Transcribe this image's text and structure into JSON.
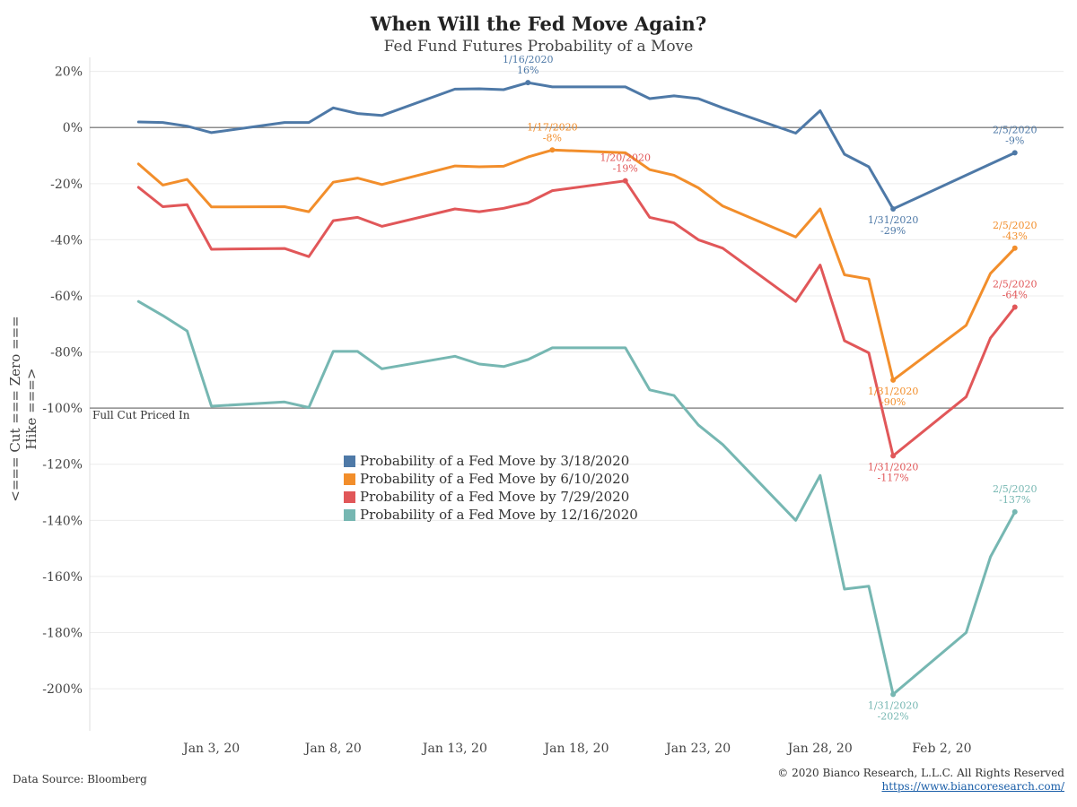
{
  "header": {
    "title": "When Will the Fed Move Again?",
    "subtitle": "Fed Fund Futures Probability of a Move"
  },
  "footer": {
    "source": "Data Source: Bloomberg",
    "copyright": "© 2020 Bianco Research, L.L.C. All Rights Reserved",
    "url": "https://www.biancoresearch.com/"
  },
  "chart_data": {
    "type": "line",
    "title": "When Will the Fed Move Again?",
    "subtitle": "Fed Fund Futures Probability of a Move",
    "ylabel": "<=== Cut === Zero === Hike ===>",
    "xlabel": "",
    "ylim": [
      -215,
      25
    ],
    "xlim": [
      "2019-12-29",
      "2020-02-07"
    ],
    "yticks": [
      20,
      0,
      -20,
      -40,
      -60,
      -80,
      -100,
      -120,
      -140,
      -160,
      -180,
      -200
    ],
    "ytick_labels": [
      "20%",
      "0%",
      "-20%",
      "-40%",
      "-60%",
      "-80%",
      "-100%",
      "-120%",
      "-140%",
      "-160%",
      "-180%",
      "-200%"
    ],
    "xticks": [
      "2020-01-03",
      "2020-01-08",
      "2020-01-13",
      "2020-01-18",
      "2020-01-23",
      "2020-01-28",
      "2020-02-02"
    ],
    "xtick_labels": [
      "Jan 3, 20",
      "Jan 8, 20",
      "Jan 13, 20",
      "Jan 18, 20",
      "Jan 23, 20",
      "Jan 28, 20",
      "Feb 2, 20"
    ],
    "grid": "horizontal",
    "legend_position": "center",
    "reference_lines": [
      {
        "y": 0,
        "label": ""
      },
      {
        "y": -100,
        "label": "Full Cut Priced In"
      }
    ],
    "x": [
      "2019-12-31",
      "2020-01-01",
      "2020-01-02",
      "2020-01-03",
      "2020-01-06",
      "2020-01-07",
      "2020-01-08",
      "2020-01-09",
      "2020-01-10",
      "2020-01-13",
      "2020-01-14",
      "2020-01-15",
      "2020-01-16",
      "2020-01-17",
      "2020-01-20",
      "2020-01-21",
      "2020-01-22",
      "2020-01-23",
      "2020-01-24",
      "2020-01-27",
      "2020-01-28",
      "2020-01-29",
      "2020-01-30",
      "2020-01-31",
      "2020-02-03",
      "2020-02-04",
      "2020-02-05"
    ],
    "series": [
      {
        "name": "Probability of a Fed Move by 3/18/2020",
        "color": "#4e79a7",
        "values": [
          2,
          1.8,
          0.5,
          -1.8,
          1.8,
          1.8,
          7,
          5,
          4.3,
          13.7,
          13.8,
          13.5,
          16,
          14.5,
          14.5,
          10.3,
          11.3,
          10.3,
          7,
          -2,
          6,
          -9.5,
          -14,
          -29,
          -17,
          -13,
          -9
        ]
      },
      {
        "name": "Probability of a Fed Move by 6/10/2020",
        "color": "#f28e2b",
        "values": [
          -13,
          -20.5,
          -18.5,
          -28.3,
          -28.2,
          -30,
          -19.5,
          -18,
          -20.3,
          -13.7,
          -14,
          -13.8,
          -10.5,
          -8,
          -9,
          -15,
          -17,
          -21.5,
          -28,
          -39,
          -29,
          -52.5,
          -54,
          -90,
          -70.5,
          -52,
          -43
        ]
      },
      {
        "name": "Probability of a Fed Move by 7/29/2020",
        "color": "#e15759",
        "values": [
          -21.3,
          -28.2,
          -27.5,
          -43.4,
          -43.1,
          -46,
          -33.2,
          -32,
          -35.2,
          -29,
          -30,
          -28.8,
          -26.8,
          -22.5,
          -19,
          -32,
          -34,
          -40,
          -43,
          -62,
          -49,
          -76,
          -80.3,
          -117,
          -96,
          -75,
          -64
        ]
      },
      {
        "name": "Probability of a Fed Move by 12/16/2020",
        "color": "#76b7b2",
        "values": [
          -62,
          -67,
          -72.5,
          -99.3,
          -97.8,
          -99.8,
          -79.8,
          -79.8,
          -86,
          -81.5,
          -84.3,
          -85.2,
          -82.7,
          -78.5,
          -78.5,
          -93.5,
          -95.5,
          -106,
          -113,
          -140,
          -124,
          -164.5,
          -163.5,
          -202,
          -180,
          -153,
          -137
        ]
      }
    ],
    "annotations": [
      {
        "series": 0,
        "date": "1/16/2020",
        "value": "16%",
        "xi": 12,
        "pos": "above"
      },
      {
        "series": 0,
        "date": "1/31/2020",
        "value": "-29%",
        "xi": 23,
        "pos": "below"
      },
      {
        "series": 0,
        "date": "2/5/2020",
        "value": "-9%",
        "xi": 26,
        "pos": "above"
      },
      {
        "series": 1,
        "date": "1/17/2020",
        "value": "-8%",
        "xi": 13,
        "pos": "above"
      },
      {
        "series": 1,
        "date": "1/31/2020",
        "value": "-90%",
        "xi": 23,
        "pos": "below"
      },
      {
        "series": 1,
        "date": "2/5/2020",
        "value": "-43%",
        "xi": 26,
        "pos": "above"
      },
      {
        "series": 2,
        "date": "1/20/2020",
        "value": "-19%",
        "xi": 14,
        "pos": "above"
      },
      {
        "series": 2,
        "date": "1/31/2020",
        "value": "-117%",
        "xi": 23,
        "pos": "below"
      },
      {
        "series": 2,
        "date": "2/5/2020",
        "value": "-64%",
        "xi": 26,
        "pos": "above"
      },
      {
        "series": 3,
        "date": "1/31/2020",
        "value": "-202%",
        "xi": 23,
        "pos": "below"
      },
      {
        "series": 3,
        "date": "2/5/2020",
        "value": "-137%",
        "xi": 26,
        "pos": "above"
      }
    ]
  }
}
